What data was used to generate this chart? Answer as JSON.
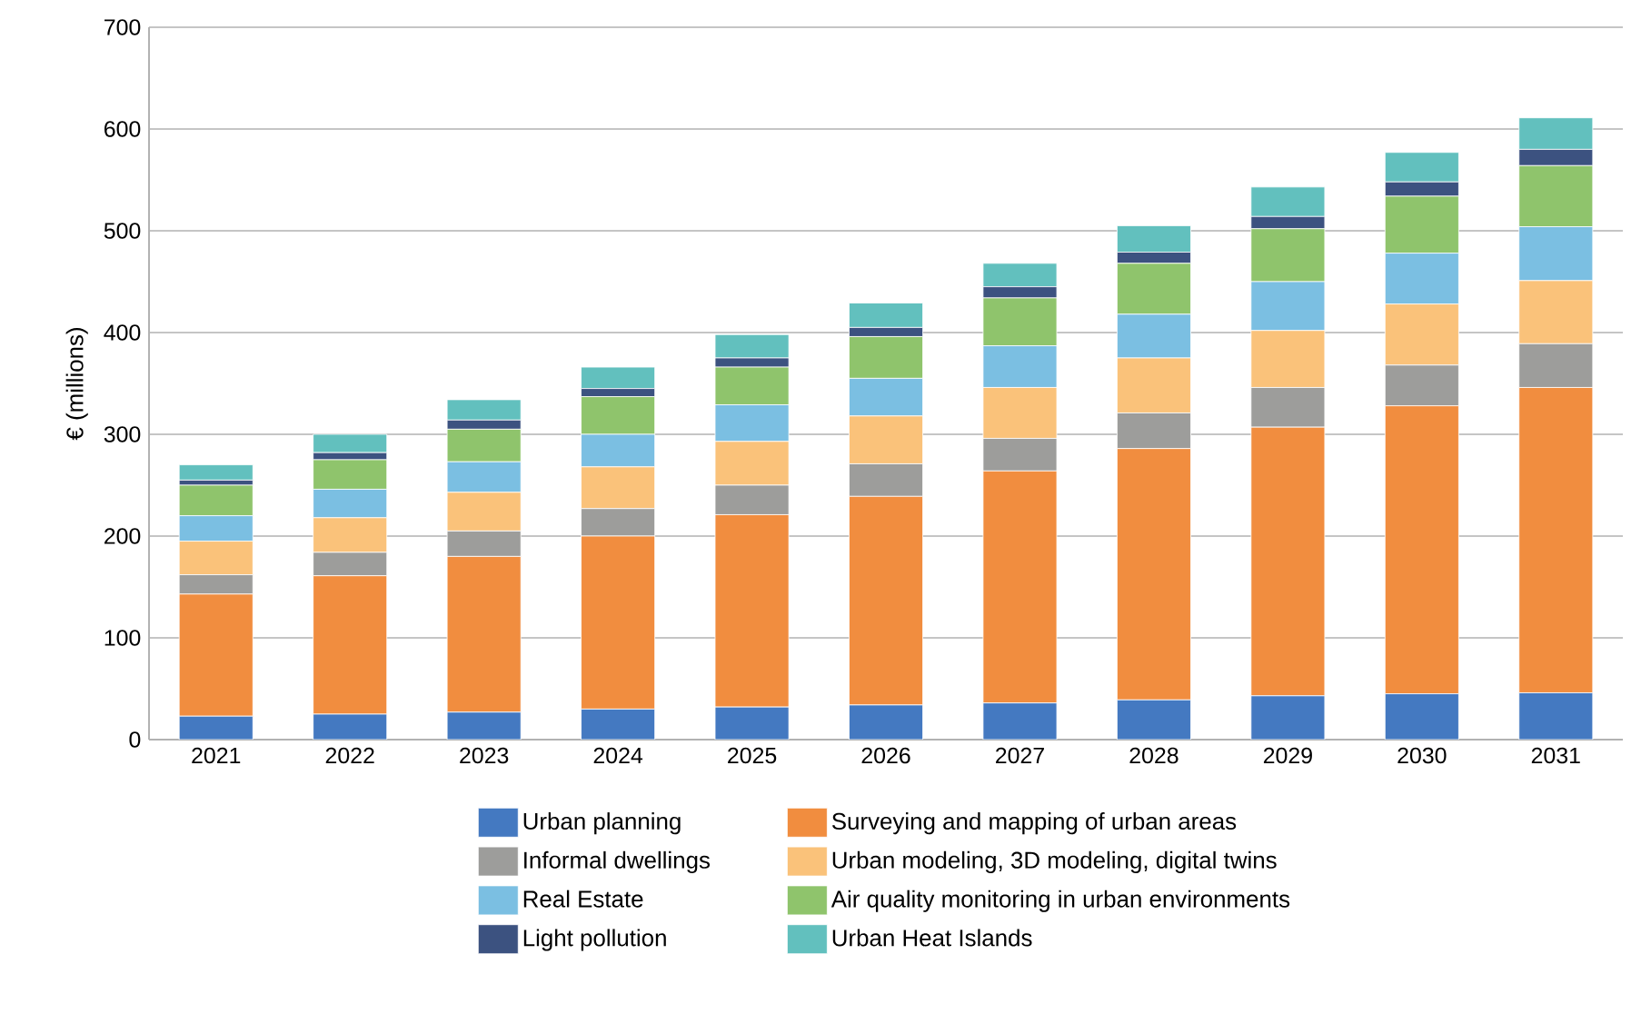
{
  "chart_data": {
    "type": "bar",
    "stacked": true,
    "ylabel": "€ (millions)",
    "categories": [
      "2021",
      "2022",
      "2023",
      "2024",
      "2025",
      "2026",
      "2027",
      "2028",
      "2029",
      "2030",
      "2031"
    ],
    "ylim": [
      0,
      700
    ],
    "yticks": [
      0,
      100,
      200,
      300,
      400,
      500,
      600,
      700
    ],
    "grid": "y",
    "legend": "bottom",
    "series": [
      {
        "name": "Urban planning",
        "color": "#4479c1",
        "values": [
          23,
          25,
          27,
          30,
          32,
          34,
          36,
          39,
          43,
          45,
          46
        ]
      },
      {
        "name": "Surveying and mapping of urban areas",
        "color": "#f18d3f",
        "values": [
          120,
          136,
          153,
          170,
          189,
          205,
          228,
          247,
          264,
          283,
          300
        ]
      },
      {
        "name": "Informal dwellings",
        "color": "#9d9d9b",
        "values": [
          19,
          23,
          25,
          27,
          29,
          32,
          32,
          35,
          39,
          40,
          43
        ]
      },
      {
        "name": "Urban modeling, 3D modeling, digital twins",
        "color": "#fac27a",
        "values": [
          33,
          34,
          38,
          41,
          43,
          47,
          50,
          54,
          56,
          60,
          62
        ]
      },
      {
        "name": "Real Estate",
        "color": "#7bbfe2",
        "values": [
          25,
          28,
          30,
          32,
          36,
          37,
          41,
          43,
          48,
          50,
          53
        ]
      },
      {
        "name": "Air quality monitoring in urban environments",
        "color": "#8fc46c",
        "values": [
          30,
          29,
          32,
          37,
          37,
          41,
          47,
          50,
          52,
          56,
          60
        ]
      },
      {
        "name": "Light pollution",
        "color": "#3c5280",
        "values": [
          5,
          7,
          9,
          8,
          9,
          9,
          11,
          11,
          12,
          14,
          16
        ]
      },
      {
        "name": "Urban Heat Islands",
        "color": "#62c0be",
        "values": [
          15,
          18,
          20,
          21,
          23,
          24,
          23,
          26,
          29,
          29,
          31
        ]
      }
    ]
  }
}
